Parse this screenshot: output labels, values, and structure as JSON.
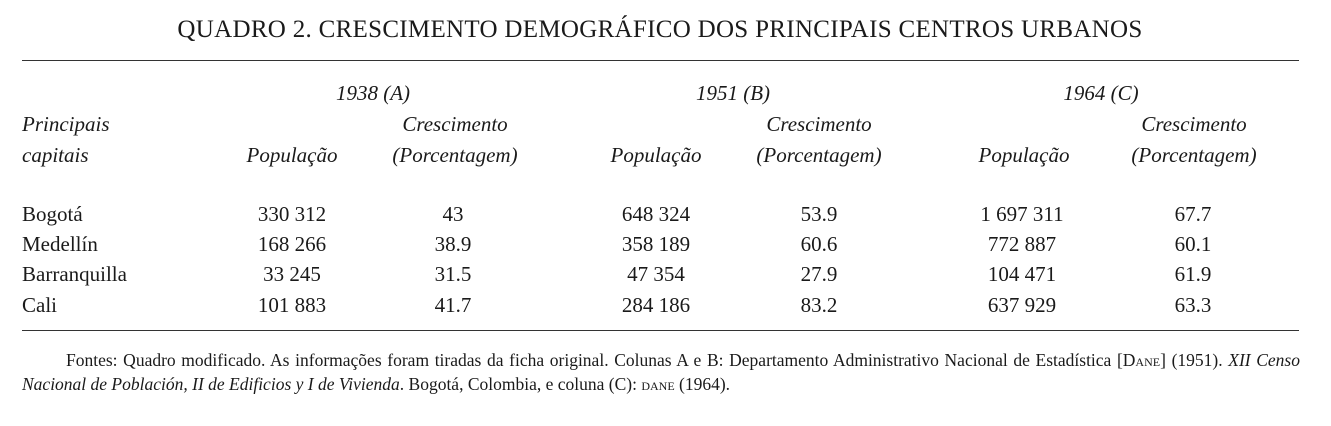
{
  "title": "QUADRO 2. CRESCIMENTO DEMOGRÁFICO DOS PRINCIPAIS CENTROS URBANOS",
  "header": {
    "rowlabel_line1": "Principais",
    "rowlabel_line2": "capitais",
    "periods": [
      "1938 (A)",
      "1951 (B)",
      "1964 (C)"
    ],
    "pop_label": "População",
    "growth_line1": "Crescimento",
    "growth_line2": "(Porcentagem)"
  },
  "rows": [
    {
      "city": "Bogotá",
      "values": [
        "330 312",
        "43",
        "648 324",
        "53.9",
        "1 697 311",
        "67.7"
      ]
    },
    {
      "city": "Medellín",
      "values": [
        "168 266",
        "38.9",
        "358 189",
        "60.6",
        "772 887",
        "60.1"
      ]
    },
    {
      "city": "Barranquilla",
      "values": [
        "33 245",
        "31.5",
        "47 354",
        "27.9",
        "104 471",
        "61.9"
      ]
    },
    {
      "city": "Cali",
      "values": [
        "101 883",
        "41.7",
        "284 186",
        "83.2",
        "637 929",
        "63.3"
      ]
    }
  ],
  "note": {
    "part1": "Fontes: Quadro modificado. As informações foram tiradas da ficha original. Colunas A e B: Departamento Administrativo Nacional de Estadística [",
    "dane1": "Dane",
    "part2": "] (1951). ",
    "italic": "XII Censo Nacional de Población, II de Edificios y I de Vivienda",
    "part3": ". Bogotá, Colombia, e coluna (C): ",
    "dane2": "dane",
    "part4": " (1964)."
  }
}
